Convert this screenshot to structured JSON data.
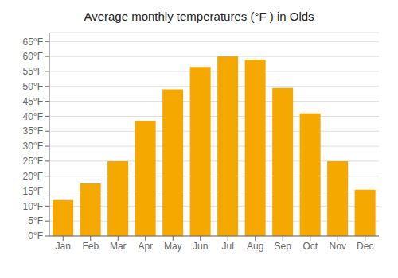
{
  "chart_data": {
    "type": "bar",
    "title": "Average monthly temperatures (°F ) in Olds",
    "categories": [
      "Jan",
      "Feb",
      "Mar",
      "Apr",
      "May",
      "Jun",
      "Jul",
      "Aug",
      "Sep",
      "Oct",
      "Nov",
      "Dec"
    ],
    "values": [
      12,
      17.5,
      25,
      38.5,
      49,
      56.5,
      60,
      59,
      49.5,
      41,
      25,
      15.5
    ],
    "color": "#F5A800",
    "ylim": [
      0,
      68
    ],
    "yticks": [
      {
        "value": 0,
        "label": "0°F"
      },
      {
        "value": 5,
        "label": "5°F"
      },
      {
        "value": 10,
        "label": "10°F"
      },
      {
        "value": 15,
        "label": "15°F"
      },
      {
        "value": 20,
        "label": "20°F"
      },
      {
        "value": 25,
        "label": "25°F"
      },
      {
        "value": 30,
        "label": "30°F"
      },
      {
        "value": 35,
        "label": "35°F"
      },
      {
        "value": 40,
        "label": "40°F"
      },
      {
        "value": 45,
        "label": "45°F"
      },
      {
        "value": 50,
        "label": "50°F"
      },
      {
        "value": 55,
        "label": "55°F"
      },
      {
        "value": 60,
        "label": "60°F"
      },
      {
        "value": 65,
        "label": "65°F"
      }
    ],
    "grid": true
  }
}
